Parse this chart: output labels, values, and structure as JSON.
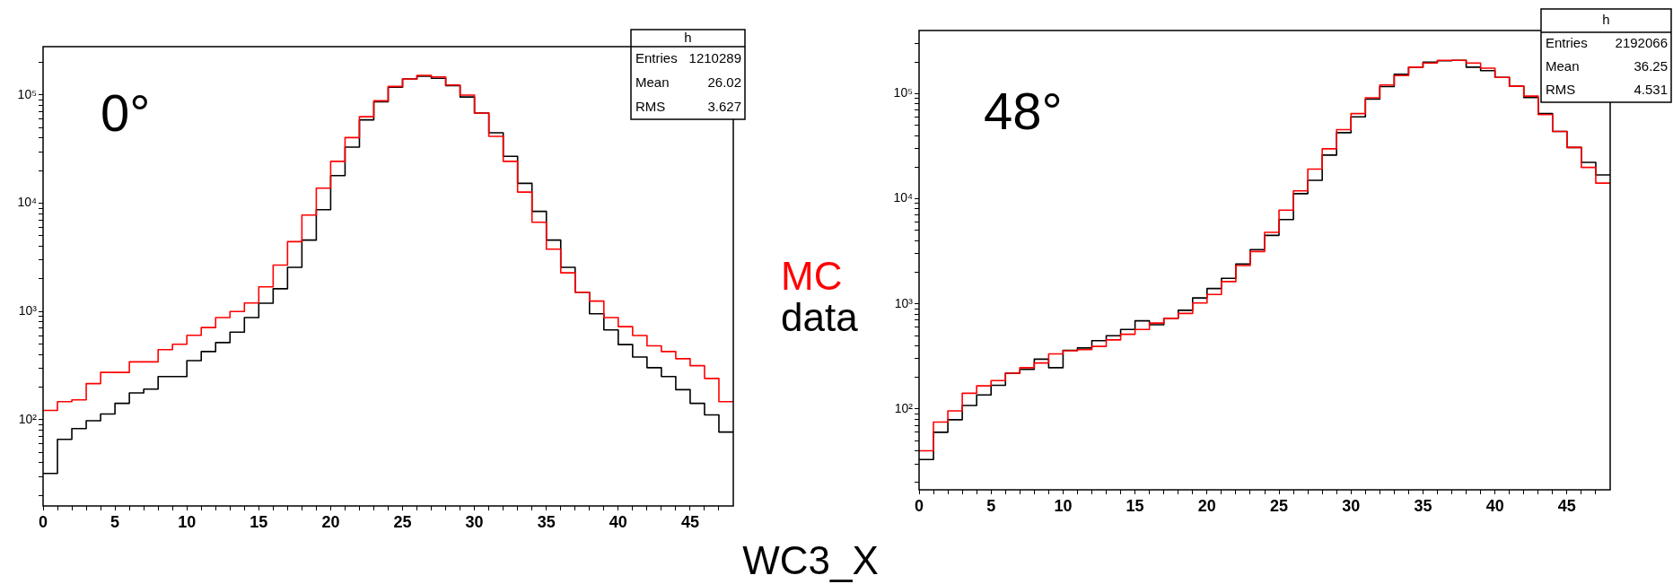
{
  "chart_data": [
    {
      "type": "histogram",
      "xlabel": "WC3_X",
      "legend": "right",
      "log": "y",
      "bins": [
        0,
        1,
        2,
        3,
        4,
        5,
        6,
        7,
        8,
        9,
        10,
        11,
        12,
        13,
        14,
        15,
        16,
        17,
        18,
        19,
        20,
        21,
        22,
        23,
        24,
        25,
        26,
        27,
        28,
        29,
        30,
        31,
        32,
        33,
        34,
        35,
        36,
        37,
        38,
        39,
        40,
        41,
        42,
        43,
        44,
        45,
        46,
        47,
        48
      ],
      "series": [
        {
          "name": "MC",
          "color": "#ff0000",
          "values": [
            122,
            147,
            153,
            216,
            274,
            274,
            343,
            343,
            445,
            499,
            604,
            711,
            879,
            1000,
            1200,
            1690,
            2690,
            4420,
            7780,
            13800,
            24400,
            40500,
            63000,
            88500,
            120000,
            141000,
            152000,
            147000,
            124000,
            100000,
            68200,
            41500,
            24400,
            12700,
            6680,
            3770,
            2280,
            1510,
            1250,
            879,
            726,
            600,
            482,
            427,
            367,
            316,
            241,
            147
          ]
        },
        {
          "name": "data",
          "color": "#000000",
          "values": [
            32,
            66,
            83,
            98,
            113,
            142,
            177,
            192,
            251,
            251,
            352,
            427,
            517,
            646,
            880,
            1195,
            1625,
            2560,
            4570,
            8720,
            18000,
            33000,
            59000,
            86700,
            118000,
            141000,
            149000,
            143000,
            122000,
            96000,
            68200,
            44800,
            27200,
            15300,
            8430,
            4570,
            2560,
            1510,
            953,
            677,
            495,
            380,
            303,
            251,
            190,
            142,
            111,
            77
          ]
        }
      ],
      "xlim": [
        0,
        48
      ],
      "xticks": [
        0,
        {
          "value": 1,
          "label": null
        },
        {
          "value": 2,
          "label": null
        },
        {
          "value": 3,
          "label": null
        },
        {
          "value": 4,
          "label": null
        },
        5,
        {
          "value": 6,
          "label": null
        },
        {
          "value": 7,
          "label": null
        },
        {
          "value": 8,
          "label": null
        },
        {
          "value": 9,
          "label": null
        },
        10,
        {
          "value": 11,
          "label": null
        },
        {
          "value": 12,
          "label": null
        },
        {
          "value": 13,
          "label": null
        },
        {
          "value": 14,
          "label": null
        },
        15,
        {
          "value": 16,
          "label": null
        },
        {
          "value": 17,
          "label": null
        },
        {
          "value": 18,
          "label": null
        },
        {
          "value": 19,
          "label": null
        },
        20,
        {
          "value": 21,
          "label": null
        },
        {
          "value": 22,
          "label": null
        },
        {
          "value": 23,
          "label": null
        },
        {
          "value": 24,
          "label": null
        },
        25,
        {
          "value": 26,
          "label": null
        },
        {
          "value": 27,
          "label": null
        },
        {
          "value": 28,
          "label": null
        },
        {
          "value": 29,
          "label": null
        },
        30,
        {
          "value": 31,
          "label": null
        },
        {
          "value": 32,
          "label": null
        },
        {
          "value": 33,
          "label": null
        },
        {
          "value": 34,
          "label": null
        },
        35,
        {
          "value": 36,
          "label": null
        },
        {
          "value": 37,
          "label": null
        },
        {
          "value": 38,
          "label": null
        },
        {
          "value": 39,
          "label": null
        },
        40,
        {
          "value": 41,
          "label": null
        },
        {
          "value": 42,
          "label": null
        },
        {
          "value": 43,
          "label": null
        },
        {
          "value": 44,
          "label": null
        },
        45,
        {
          "value": 46,
          "label": null
        },
        {
          "value": 47,
          "label": null
        }
      ],
      "ylim": [
        16,
        280000
      ],
      "yticks": [
        {
          "value": 20,
          "label": null
        },
        {
          "value": 30,
          "label": null
        },
        {
          "value": 40,
          "label": null
        },
        {
          "value": 50,
          "label": null
        },
        {
          "value": 60,
          "label": null
        },
        {
          "value": 70,
          "label": null
        },
        {
          "value": 80,
          "label": null
        },
        {
          "value": 90,
          "label": null
        },
        {
          "value": 100,
          "label": "10²"
        },
        {
          "value": 200,
          "label": null
        },
        {
          "value": 300,
          "label": null
        },
        {
          "value": 400,
          "label": null
        },
        {
          "value": 500,
          "label": null
        },
        {
          "value": 600,
          "label": null
        },
        {
          "value": 700,
          "label": null
        },
        {
          "value": 800,
          "label": null
        },
        {
          "value": 900,
          "label": null
        },
        {
          "value": 1000,
          "label": "10³"
        },
        {
          "value": 2000,
          "label": null
        },
        {
          "value": 3000,
          "label": null
        },
        {
          "value": 4000,
          "label": null
        },
        {
          "value": 5000,
          "label": null
        },
        {
          "value": 6000,
          "label": null
        },
        {
          "value": 7000,
          "label": null
        },
        {
          "value": 8000,
          "label": null
        },
        {
          "value": 9000,
          "label": null
        },
        {
          "value": 10000,
          "label": "10⁴"
        },
        {
          "value": 20000,
          "label": null
        },
        {
          "value": 30000,
          "label": null
        },
        {
          "value": 40000,
          "label": null
        },
        {
          "value": 50000,
          "label": null
        },
        {
          "value": 60000,
          "label": null
        },
        {
          "value": 70000,
          "label": null
        },
        {
          "value": 80000,
          "label": null
        },
        {
          "value": 90000,
          "label": null
        },
        {
          "value": 100000,
          "label": "10⁵"
        },
        {
          "value": 200000,
          "label": null
        }
      ],
      "annotations": [
        "0°",
        "h",
        "Entries",
        "1210289",
        "Mean",
        "26.02",
        "RMS",
        "3.627"
      ]
    },
    {
      "type": "histogram",
      "log": "y",
      "bins": [
        0,
        1,
        2,
        3,
        4,
        5,
        6,
        7,
        8,
        9,
        10,
        11,
        12,
        13,
        14,
        15,
        16,
        17,
        18,
        19,
        20,
        21,
        22,
        23,
        24,
        25,
        26,
        27,
        28,
        29,
        30,
        31,
        32,
        33,
        34,
        35,
        36,
        37,
        38,
        39,
        40,
        41,
        42,
        43,
        44,
        45,
        46,
        47,
        48
      ],
      "series": [
        {
          "color": "#ff0000",
          "values": [
            40,
            75,
            96,
            141,
            166,
            186,
            219,
            247,
            274,
            334,
            358,
            367,
            394,
            454,
            514,
            571,
            657,
            729,
            811,
            1020,
            1230,
            1630,
            2320,
            3150,
            4790,
            7800,
            11900,
            19200,
            29900,
            45500,
            64700,
            91600,
            121000,
            149000,
            179000,
            196000,
            208000,
            208000,
            196000,
            175000,
            143000,
            118000,
            95000,
            63400,
            43800,
            30800,
            19900,
            14100
          ]
        },
        {
          "color": "#000000",
          "values": [
            33,
            60,
            79,
            108,
            136,
            168,
            219,
            238,
            298,
            247,
            362,
            381,
            447,
            497,
            571,
            690,
            634,
            729,
            869,
            1140,
            1400,
            1750,
            2400,
            3290,
            4490,
            6340,
            11200,
            15000,
            26100,
            42600,
            60300,
            88900,
            117000,
            153000,
            179000,
            200000,
            206000,
            208000,
            179000,
            166000,
            143000,
            118000,
            92000,
            64700,
            43800,
            30800,
            22200,
            16900
          ]
        }
      ],
      "xlim": [
        0,
        48
      ],
      "xticks": [
        0,
        {
          "value": 1,
          "label": null
        },
        {
          "value": 2,
          "label": null
        },
        {
          "value": 3,
          "label": null
        },
        {
          "value": 4,
          "label": null
        },
        5,
        {
          "value": 6,
          "label": null
        },
        {
          "value": 7,
          "label": null
        },
        {
          "value": 8,
          "label": null
        },
        {
          "value": 9,
          "label": null
        },
        10,
        {
          "value": 11,
          "label": null
        },
        {
          "value": 12,
          "label": null
        },
        {
          "value": 13,
          "label": null
        },
        {
          "value": 14,
          "label": null
        },
        15,
        {
          "value": 16,
          "label": null
        },
        {
          "value": 17,
          "label": null
        },
        {
          "value": 18,
          "label": null
        },
        {
          "value": 19,
          "label": null
        },
        20,
        {
          "value": 21,
          "label": null
        },
        {
          "value": 22,
          "label": null
        },
        {
          "value": 23,
          "label": null
        },
        {
          "value": 24,
          "label": null
        },
        25,
        {
          "value": 26,
          "label": null
        },
        {
          "value": 27,
          "label": null
        },
        {
          "value": 28,
          "label": null
        },
        {
          "value": 29,
          "label": null
        },
        30,
        {
          "value": 31,
          "label": null
        },
        {
          "value": 32,
          "label": null
        },
        {
          "value": 33,
          "label": null
        },
        {
          "value": 34,
          "label": null
        },
        35,
        {
          "value": 36,
          "label": null
        },
        {
          "value": 37,
          "label": null
        },
        {
          "value": 38,
          "label": null
        },
        {
          "value": 39,
          "label": null
        },
        40,
        {
          "value": 41,
          "label": null
        },
        {
          "value": 42,
          "label": null
        },
        {
          "value": 43,
          "label": null
        },
        {
          "value": 44,
          "label": null
        },
        45,
        {
          "value": 46,
          "label": null
        },
        {
          "value": 47,
          "label": null
        }
      ],
      "ylim": [
        17,
        400000
      ],
      "yticks": [
        {
          "value": 20,
          "label": null
        },
        {
          "value": 30,
          "label": null
        },
        {
          "value": 40,
          "label": null
        },
        {
          "value": 50,
          "label": null
        },
        {
          "value": 60,
          "label": null
        },
        {
          "value": 70,
          "label": null
        },
        {
          "value": 80,
          "label": null
        },
        {
          "value": 90,
          "label": null
        },
        {
          "value": 100,
          "label": "10²"
        },
        {
          "value": 200,
          "label": null
        },
        {
          "value": 300,
          "label": null
        },
        {
          "value": 400,
          "label": null
        },
        {
          "value": 500,
          "label": null
        },
        {
          "value": 600,
          "label": null
        },
        {
          "value": 700,
          "label": null
        },
        {
          "value": 800,
          "label": null
        },
        {
          "value": 900,
          "label": null
        },
        {
          "value": 1000,
          "label": "10³"
        },
        {
          "value": 2000,
          "label": null
        },
        {
          "value": 3000,
          "label": null
        },
        {
          "value": 4000,
          "label": null
        },
        {
          "value": 5000,
          "label": null
        },
        {
          "value": 6000,
          "label": null
        },
        {
          "value": 7000,
          "label": null
        },
        {
          "value": 8000,
          "label": null
        },
        {
          "value": 9000,
          "label": null
        },
        {
          "value": 10000,
          "label": "10⁴"
        },
        {
          "value": 20000,
          "label": null
        },
        {
          "value": 30000,
          "label": null
        },
        {
          "value": 40000,
          "label": null
        },
        {
          "value": 50000,
          "label": null
        },
        {
          "value": 60000,
          "label": null
        },
        {
          "value": 70000,
          "label": null
        },
        {
          "value": 80000,
          "label": null
        },
        {
          "value": 90000,
          "label": null
        },
        {
          "value": 100000,
          "label": "10⁵"
        },
        {
          "value": 200000,
          "label": null
        },
        {
          "value": 300000,
          "label": null
        }
      ],
      "annotations": [
        "48°",
        "h",
        "Entries",
        "2192066",
        "Mean",
        "36.25",
        "RMS",
        "4.531"
      ]
    }
  ]
}
